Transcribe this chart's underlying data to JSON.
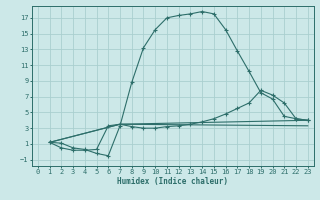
{
  "xlabel": "Humidex (Indice chaleur)",
  "ylabel": "",
  "bg_color": "#cce8e8",
  "line_color": "#2d6e6a",
  "grid_color": "#aacfcf",
  "xlim": [
    -0.5,
    23.5
  ],
  "ylim": [
    -1.8,
    18.5
  ],
  "xticks": [
    0,
    1,
    2,
    3,
    4,
    5,
    6,
    7,
    8,
    9,
    10,
    11,
    12,
    13,
    14,
    15,
    16,
    17,
    18,
    19,
    20,
    21,
    22,
    23
  ],
  "yticks": [
    -1,
    1,
    3,
    5,
    7,
    9,
    11,
    13,
    15,
    17
  ],
  "curve1_x": [
    1,
    2,
    3,
    4,
    5,
    6,
    7,
    8,
    9,
    10,
    11,
    12,
    13,
    14,
    15,
    16,
    17,
    18,
    19,
    20,
    21,
    22,
    23
  ],
  "curve1_y": [
    1.2,
    1.1,
    0.5,
    0.3,
    -0.2,
    -0.5,
    3.3,
    8.8,
    13.2,
    15.5,
    17.0,
    17.3,
    17.5,
    17.8,
    17.5,
    15.5,
    12.8,
    10.2,
    7.5,
    6.7,
    4.5,
    4.2,
    4.0
  ],
  "curve2_x": [
    1,
    2,
    3,
    4,
    5,
    6,
    7,
    8,
    9,
    10,
    11,
    12,
    13,
    14,
    15,
    16,
    17,
    18,
    19,
    20,
    21,
    22,
    23
  ],
  "curve2_y": [
    1.2,
    0.5,
    0.2,
    0.2,
    0.3,
    3.3,
    3.5,
    3.2,
    3.0,
    3.0,
    3.2,
    3.3,
    3.5,
    3.8,
    4.2,
    4.8,
    5.5,
    6.2,
    7.8,
    7.2,
    6.2,
    4.2,
    4.0
  ],
  "curve3_x": [
    1,
    7,
    23
  ],
  "curve3_y": [
    1.2,
    3.5,
    4.0
  ],
  "curve4_x": [
    1,
    7,
    23
  ],
  "curve4_y": [
    1.2,
    3.5,
    3.3
  ]
}
